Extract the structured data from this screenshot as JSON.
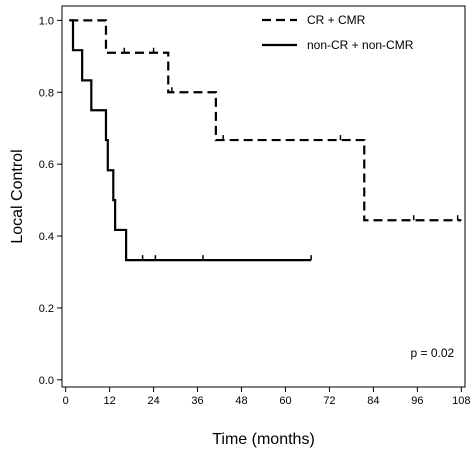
{
  "chart_data": {
    "type": "line",
    "subtype": "kaplan-meier",
    "title": "",
    "xlabel": "Time (months)",
    "ylabel": "Local Control",
    "xlim": [
      -1,
      109
    ],
    "ylim": [
      -0.02,
      1.04
    ],
    "xticks": [
      0,
      12,
      24,
      36,
      48,
      60,
      72,
      84,
      96,
      108
    ],
    "xtick_labels": [
      "0",
      "12",
      "24",
      "36",
      "48",
      "60",
      "72",
      "84",
      "96",
      "108"
    ],
    "yticks": [
      0.0,
      0.2,
      0.4,
      0.6,
      0.8,
      1.0
    ],
    "ytick_labels": [
      "0.0",
      "0.2",
      "0.4",
      "0.6",
      "0.8",
      "1.0"
    ],
    "grid": false,
    "legend_position": "top-right",
    "series": [
      {
        "name": "CR + CMR",
        "style": "dashed",
        "color": "#000000",
        "steps": [
          [
            1,
            1.0
          ],
          [
            11,
            0.91
          ],
          [
            28,
            0.8
          ],
          [
            41,
            0.667
          ],
          [
            81.5,
            0.444
          ],
          [
            108,
            0.444
          ]
        ],
        "censored": [
          [
            16,
            0.91
          ],
          [
            24,
            0.91
          ],
          [
            29,
            0.8
          ],
          [
            43,
            0.667
          ],
          [
            75,
            0.667
          ],
          [
            95,
            0.444
          ],
          [
            107,
            0.444
          ]
        ]
      },
      {
        "name": "non-CR + non-CMR",
        "style": "solid",
        "color": "#000000",
        "steps": [
          [
            1,
            1.0
          ],
          [
            2,
            0.917
          ],
          [
            4.5,
            0.833
          ],
          [
            7,
            0.75
          ],
          [
            11,
            0.667
          ],
          [
            11.5,
            0.583
          ],
          [
            13,
            0.5
          ],
          [
            13.5,
            0.417
          ],
          [
            16.5,
            0.333
          ],
          [
            67,
            0.333
          ]
        ],
        "censored": [
          [
            21,
            0.333
          ],
          [
            24.5,
            0.333
          ],
          [
            37.5,
            0.333
          ],
          [
            67,
            0.333
          ]
        ]
      }
    ],
    "annotations": [
      {
        "text": "p = 0.02",
        "x": 96,
        "y": 0.075
      }
    ]
  }
}
